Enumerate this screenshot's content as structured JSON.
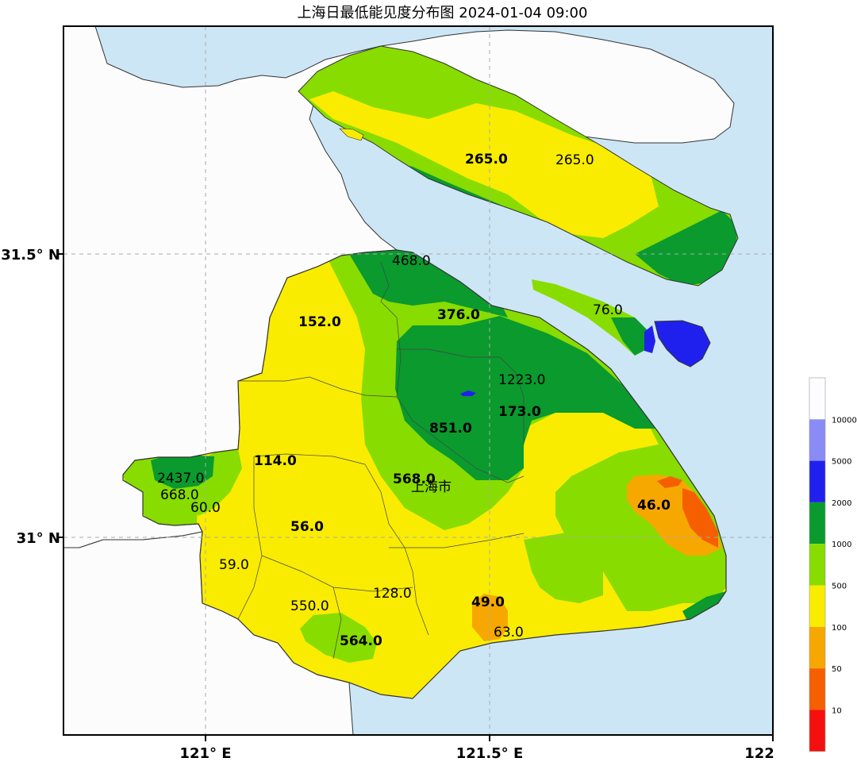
{
  "title": "上海日最低能见度分布图 2024-01-04 09:00",
  "axes": {
    "x_ticks": [
      "121° E",
      "121.5° E",
      "122"
    ],
    "y_ticks": [
      "31.5° N",
      "31° N"
    ]
  },
  "city_label": "上海市",
  "station_labels": [
    {
      "text": "265.0",
      "bold": true
    },
    {
      "text": "265.0",
      "bold": false
    },
    {
      "text": "468.0",
      "bold": false
    },
    {
      "text": "376.0",
      "bold": true
    },
    {
      "text": "76.0",
      "bold": false
    },
    {
      "text": "152.0",
      "bold": true
    },
    {
      "text": "1223.0",
      "bold": false
    },
    {
      "text": "173.0",
      "bold": true
    },
    {
      "text": "851.0",
      "bold": true
    },
    {
      "text": "2437.0",
      "bold": false
    },
    {
      "text": "114.0",
      "bold": true
    },
    {
      "text": "668.0",
      "bold": false
    },
    {
      "text": "60.0",
      "bold": false
    },
    {
      "text": "568.0",
      "bold": true
    },
    {
      "text": "46.0",
      "bold": true
    },
    {
      "text": "56.0",
      "bold": true
    },
    {
      "text": "59.0",
      "bold": false
    },
    {
      "text": "128.0",
      "bold": false
    },
    {
      "text": "550.0",
      "bold": false
    },
    {
      "text": "49.0",
      "bold": true
    },
    {
      "text": "63.0",
      "bold": false
    },
    {
      "text": "564.0",
      "bold": true
    }
  ],
  "legend": {
    "levels": [
      {
        "label": "10000",
        "color": "#fdfdff"
      },
      {
        "label": "5000",
        "color": "#8a8cf5"
      },
      {
        "label": "2000",
        "color": "#2020ee"
      },
      {
        "label": "1000",
        "color": "#0a9a2e"
      },
      {
        "label": "500",
        "color": "#88dc00"
      },
      {
        "label": "100",
        "color": "#f9ec00"
      },
      {
        "label": "50",
        "color": "#f7a800"
      },
      {
        "label": "10",
        "color": "#f65f00"
      },
      {
        "label": "",
        "color": "#f50f0f"
      }
    ]
  },
  "colors": {
    "water": "#cde6f5",
    "land_outside": "#fcfcfc"
  }
}
